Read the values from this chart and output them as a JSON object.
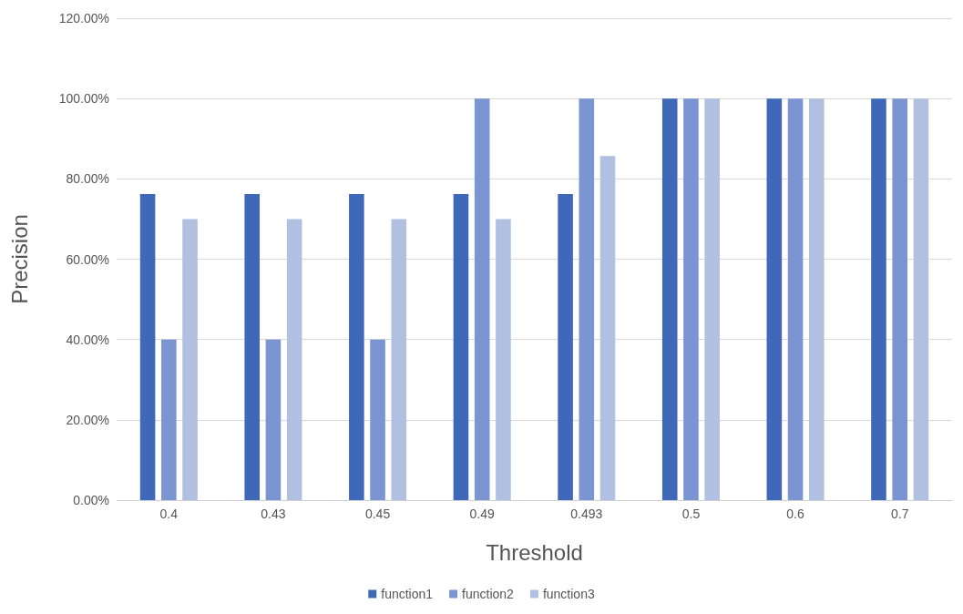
{
  "chart_data": {
    "type": "bar",
    "xlabel": "Threshold",
    "ylabel": "Precision",
    "categories": [
      "0.4",
      "0.43",
      "0.45",
      "0.49",
      "0.493",
      "0.5",
      "0.6",
      "0.7"
    ],
    "series": [
      {
        "name": "function1",
        "color": "#3f69b8",
        "values": [
          76.2,
          76.2,
          76.2,
          76.2,
          76.2,
          100,
          100,
          100
        ]
      },
      {
        "name": "function2",
        "color": "#7b94d2",
        "values": [
          40,
          40,
          40,
          100,
          100,
          100,
          100,
          100
        ]
      },
      {
        "name": "function3",
        "color": "#b1bfe1",
        "values": [
          70,
          70,
          70,
          70,
          85.7,
          100,
          100,
          100
        ]
      }
    ],
    "ylim": [
      0,
      120
    ],
    "yticks": [
      {
        "value": 0,
        "label": "0.00%"
      },
      {
        "value": 20,
        "label": "20.00%"
      },
      {
        "value": 40,
        "label": "40.00%"
      },
      {
        "value": 60,
        "label": "60.00%"
      },
      {
        "value": 80,
        "label": "80.00%"
      },
      {
        "value": 100,
        "label": "100.00%"
      },
      {
        "value": 120,
        "label": "120.00%"
      }
    ],
    "grid": "y",
    "legend": "bottom"
  }
}
